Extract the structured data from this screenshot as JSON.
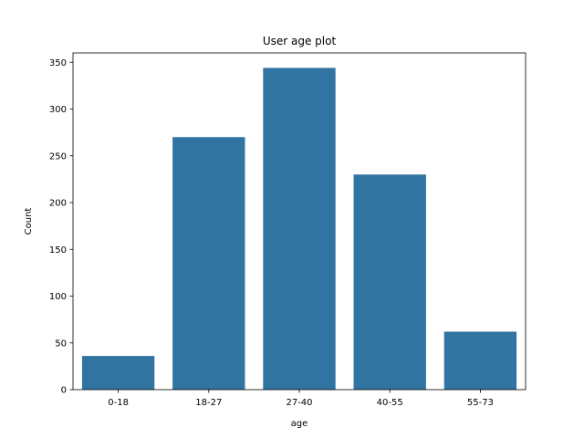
{
  "chart_data": {
    "type": "bar",
    "title": "User age plot",
    "xlabel": "age",
    "ylabel": "Count",
    "categories": [
      "0-18",
      "18-27",
      "27-40",
      "40-55",
      "55-73"
    ],
    "values": [
      36,
      270,
      344,
      230,
      62
    ],
    "ylim": [
      0,
      360
    ],
    "yticks": [
      0,
      50,
      100,
      150,
      200,
      250,
      300,
      350
    ],
    "ytick_labels": [
      "0",
      "50",
      "100",
      "150",
      "200",
      "250",
      "300",
      "350"
    ],
    "grid": false,
    "legend": "none",
    "bar_color": "#3274a1"
  }
}
